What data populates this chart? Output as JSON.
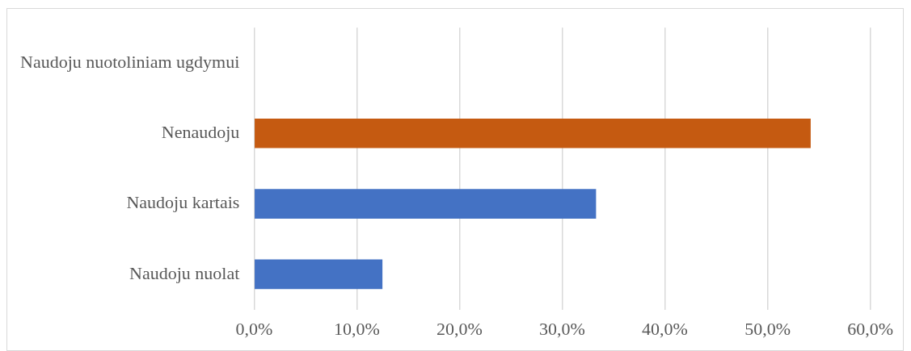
{
  "chart_data": {
    "type": "bar",
    "orientation": "horizontal",
    "categories": [
      "Naudoju nuotoliniam ugdymui",
      "Nenaudoju",
      "Naudoju kartais",
      "Naudoju nuolat"
    ],
    "values": [
      null,
      54.2,
      33.3,
      12.5
    ],
    "colors": [
      "#4472c4",
      "#c55a11",
      "#4472c4",
      "#4472c4"
    ],
    "xlim": [
      0,
      60
    ],
    "xticks": [
      {
        "value": 0,
        "label": "0,0%"
      },
      {
        "value": 10,
        "label": "10,0%"
      },
      {
        "value": 20,
        "label": "20,0%"
      },
      {
        "value": 30,
        "label": "30,0%"
      },
      {
        "value": 40,
        "label": "40,0%"
      },
      {
        "value": 50,
        "label": "50,0%"
      },
      {
        "value": 60,
        "label": "60,0%"
      }
    ],
    "grid": "x",
    "legend": false
  }
}
